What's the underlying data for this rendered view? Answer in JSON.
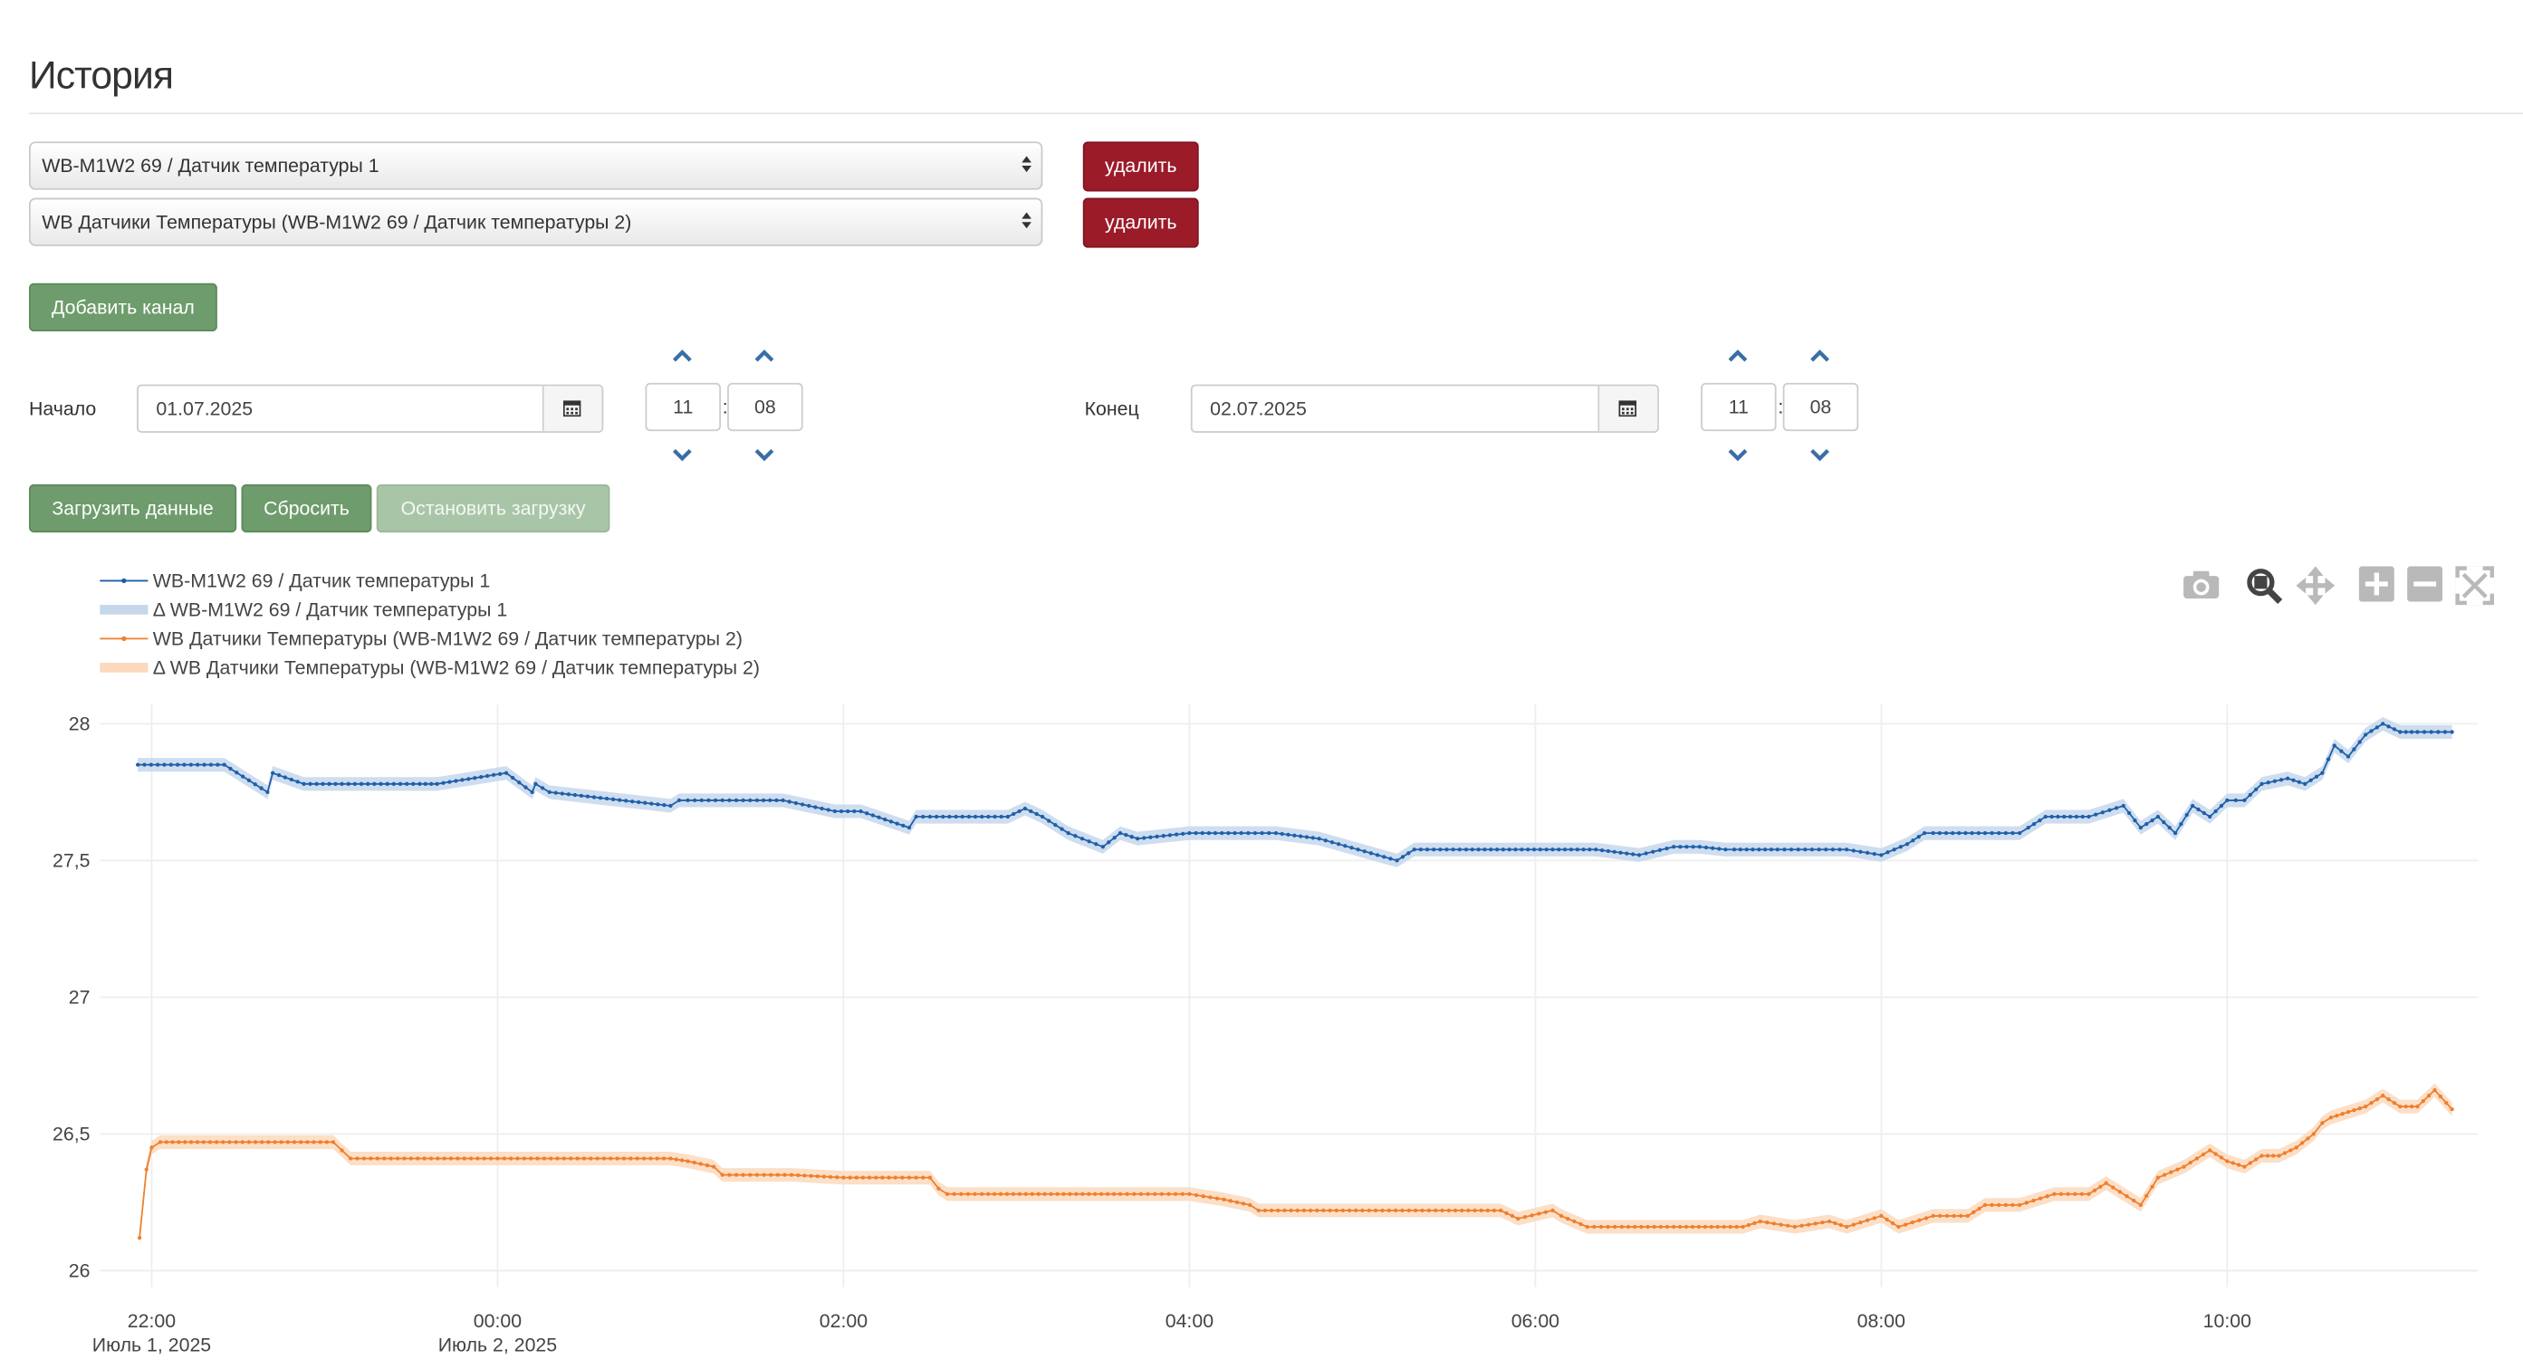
{
  "page_title": "История",
  "channels": [
    {
      "value": "WB-M1W2 69 / Датчик температуры 1",
      "delete_label": "удалить"
    },
    {
      "value": "WB Датчики Температуры (WB-M1W2 69 / Датчик температуры 2)",
      "delete_label": "удалить"
    }
  ],
  "add_channel_label": "Добавить канал",
  "start": {
    "label": "Начало",
    "date": "01.07.2025",
    "hour": "11",
    "minute": "08"
  },
  "end": {
    "label": "Конец",
    "date": "02.07.2025",
    "hour": "11",
    "minute": "08"
  },
  "time_separator": ":",
  "buttons": {
    "load": "Загрузить данные",
    "reset": "Сбросить",
    "stop": "Остановить загрузку"
  },
  "modebar": [
    "camera-icon",
    "zoom-icon",
    "pan-icon",
    "zoom-in-icon",
    "zoom-out-icon",
    "autoscale-icon"
  ],
  "colors": {
    "series1": "#1f5fa8",
    "series2": "#ee7f2d",
    "band1": "#c6d7ec",
    "band2": "#fbd9bd",
    "danger": "#9b1b29",
    "success": "#6e9c6c"
  },
  "chart_data": {
    "type": "line",
    "legend": [
      "WB-M1W2 69 / Датчик температуры 1",
      "Δ WB-M1W2 69 / Датчик температуры 1",
      "WB Датчики Температуры (WB-M1W2 69 / Датчик температуры 2)",
      "Δ WB Датчики Температуры (WB-M1W2 69 / Датчик температуры 2)"
    ],
    "legend_position": "top-left",
    "ylim": [
      25.94,
      28.07
    ],
    "yticks": [
      "28",
      "27,5",
      "27",
      "26,5",
      "26"
    ],
    "ytick_values": [
      28,
      27.5,
      27,
      26.5,
      26
    ],
    "x_range_hours": [
      21.7,
      35.45
    ],
    "xticks": [
      {
        "h": 22,
        "label": "22:00",
        "sub": "Июль 1, 2025"
      },
      {
        "h": 24,
        "label": "00:00",
        "sub": "Июль 2, 2025"
      },
      {
        "h": 26,
        "label": "02:00",
        "sub": ""
      },
      {
        "h": 28,
        "label": "04:00",
        "sub": ""
      },
      {
        "h": 30,
        "label": "06:00",
        "sub": ""
      },
      {
        "h": 32,
        "label": "08:00",
        "sub": ""
      },
      {
        "h": 34,
        "label": "10:00",
        "sub": ""
      }
    ],
    "grid": true,
    "series": [
      {
        "name": "WB-M1W2 69 / Датчик температуры 1",
        "x": [
          21.92,
          22.15,
          22.42,
          22.67,
          22.7,
          22.88,
          23.1,
          23.4,
          23.55,
          23.65,
          24.05,
          24.2,
          24.22,
          24.3,
          25.0,
          25.05,
          25.1,
          25.3,
          25.5,
          25.65,
          25.95,
          26.1,
          26.38,
          26.42,
          26.5,
          26.8,
          26.95,
          27.05,
          27.15,
          27.3,
          27.5,
          27.6,
          27.7,
          28.0,
          28.3,
          28.5,
          28.75,
          29.2,
          29.3,
          29.6,
          29.85,
          30.1,
          30.35,
          30.6,
          30.8,
          30.95,
          31.1,
          31.15,
          31.4,
          31.6,
          31.8,
          32.0,
          32.15,
          32.25,
          32.3,
          32.6,
          32.8,
          32.85,
          32.95,
          33.2,
          33.4,
          33.5,
          33.6,
          33.7,
          33.8,
          33.9,
          34.0,
          34.05,
          34.1,
          34.2,
          34.35,
          34.45,
          34.55,
          34.62,
          34.7,
          34.8,
          34.9,
          35.0,
          35.1,
          35.3
        ],
        "y": [
          27.85,
          27.85,
          27.85,
          27.75,
          27.82,
          27.78,
          27.78,
          27.78,
          27.78,
          27.78,
          27.82,
          27.75,
          27.78,
          27.75,
          27.7,
          27.72,
          27.72,
          27.72,
          27.72,
          27.72,
          27.68,
          27.68,
          27.62,
          27.66,
          27.66,
          27.66,
          27.66,
          27.69,
          27.66,
          27.6,
          27.55,
          27.6,
          27.58,
          27.6,
          27.6,
          27.6,
          27.58,
          27.5,
          27.54,
          27.54,
          27.54,
          27.54,
          27.54,
          27.52,
          27.55,
          27.55,
          27.54,
          27.54,
          27.54,
          27.54,
          27.54,
          27.52,
          27.56,
          27.6,
          27.6,
          27.6,
          27.6,
          27.62,
          27.66,
          27.66,
          27.7,
          27.62,
          27.66,
          27.6,
          27.7,
          27.66,
          27.72,
          27.72,
          27.72,
          27.78,
          27.8,
          27.78,
          27.82,
          27.92,
          27.88,
          27.96,
          28.0,
          27.97,
          27.97,
          27.97
        ]
      },
      {
        "name": "WB Датчики Температуры (WB-M1W2 69 / Датчик температуры 2)",
        "x": [
          21.93,
          21.97,
          22.0,
          22.05,
          22.3,
          22.6,
          22.9,
          23.05,
          23.1,
          23.15,
          23.5,
          24.0,
          24.5,
          25.0,
          25.1,
          25.25,
          25.3,
          25.5,
          25.7,
          26.0,
          26.3,
          26.5,
          26.55,
          26.6,
          26.8,
          27.2,
          27.6,
          27.8,
          28.0,
          28.2,
          28.35,
          28.4,
          28.7,
          29.0,
          29.5,
          29.8,
          29.9,
          30.1,
          30.15,
          30.3,
          30.5,
          30.8,
          31.2,
          31.3,
          31.5,
          31.7,
          31.8,
          32.0,
          32.1,
          32.3,
          32.5,
          32.6,
          32.8,
          33.0,
          33.2,
          33.3,
          33.5,
          33.6,
          33.75,
          33.9,
          34.0,
          34.1,
          34.2,
          34.3,
          34.4,
          34.5,
          34.55,
          34.6,
          34.7,
          34.8,
          34.9,
          35.0,
          35.1,
          35.2,
          35.3
        ],
        "y": [
          26.12,
          26.37,
          26.45,
          26.47,
          26.47,
          26.47,
          26.47,
          26.47,
          26.44,
          26.41,
          26.41,
          26.41,
          26.41,
          26.41,
          26.4,
          26.38,
          26.35,
          26.35,
          26.35,
          26.34,
          26.34,
          26.34,
          26.3,
          26.28,
          26.28,
          26.28,
          26.28,
          26.28,
          26.28,
          26.26,
          26.24,
          26.22,
          26.22,
          26.22,
          26.22,
          26.22,
          26.19,
          26.22,
          26.2,
          26.16,
          26.16,
          26.16,
          26.16,
          26.18,
          26.16,
          26.18,
          26.16,
          26.2,
          26.16,
          26.2,
          26.2,
          26.24,
          26.24,
          26.28,
          26.28,
          26.32,
          26.24,
          26.34,
          26.38,
          26.44,
          26.4,
          26.38,
          26.42,
          26.42,
          26.45,
          26.5,
          26.54,
          26.56,
          26.58,
          26.6,
          26.64,
          26.6,
          26.6,
          26.66,
          26.59
        ]
      }
    ]
  }
}
